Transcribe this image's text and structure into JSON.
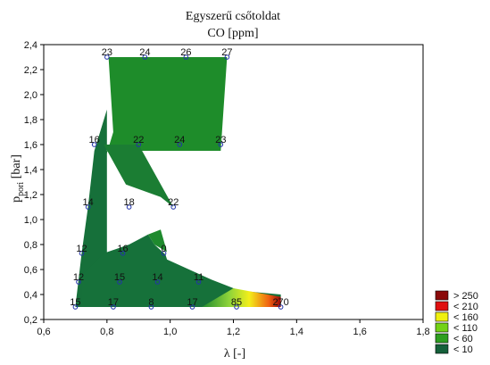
{
  "chart_data": {
    "type": "contour",
    "title": "Egyszerű csőtoldat",
    "subtitle": "CO [ppm]",
    "xlabel": "λ [-]",
    "ylabel_main": "p",
    "ylabel_sub": "pori",
    "ylabel_unit": "[bar]",
    "xlim": [
      0.6,
      1.8
    ],
    "ylim": [
      0.2,
      2.4
    ],
    "x_ticks": [
      "0,6",
      "0,8",
      "1,0",
      "1,2",
      "1,4",
      "1,6",
      "1,8"
    ],
    "y_ticks": [
      "0,2",
      "0,4",
      "0,6",
      "0,8",
      "1,0",
      "1,2",
      "1,4",
      "1,6",
      "1,8",
      "2,0",
      "2,2",
      "2,4"
    ],
    "grid": false,
    "legend_position": "bottom-right",
    "legend": [
      {
        "label": "> 250",
        "color": "#8b0a0a"
      },
      {
        "label": "< 210",
        "color": "#e01010"
      },
      {
        "label": "< 160",
        "color": "#f0f010"
      },
      {
        "label": "< 110",
        "color": "#73d216"
      },
      {
        "label": "< 60",
        "color": "#2e9e1f"
      },
      {
        "label": "< 10",
        "color": "#15603a"
      }
    ],
    "points": [
      {
        "x": 0.8,
        "y": 2.3,
        "label": "23"
      },
      {
        "x": 0.92,
        "y": 2.3,
        "label": "24"
      },
      {
        "x": 1.05,
        "y": 2.3,
        "label": "26"
      },
      {
        "x": 1.18,
        "y": 2.3,
        "label": "27"
      },
      {
        "x": 0.76,
        "y": 1.6,
        "label": "16"
      },
      {
        "x": 0.9,
        "y": 1.6,
        "label": "22"
      },
      {
        "x": 1.03,
        "y": 1.6,
        "label": "24"
      },
      {
        "x": 1.16,
        "y": 1.6,
        "label": "23"
      },
      {
        "x": 0.74,
        "y": 1.1,
        "label": "14"
      },
      {
        "x": 0.87,
        "y": 1.1,
        "label": "18"
      },
      {
        "x": 1.01,
        "y": 1.1,
        "label": "22"
      },
      {
        "x": 0.72,
        "y": 0.73,
        "label": "12"
      },
      {
        "x": 0.85,
        "y": 0.73,
        "label": "16"
      },
      {
        "x": 0.98,
        "y": 0.73,
        "label": "0"
      },
      {
        "x": 0.71,
        "y": 0.5,
        "label": "12"
      },
      {
        "x": 0.84,
        "y": 0.5,
        "label": "15"
      },
      {
        "x": 0.96,
        "y": 0.5,
        "label": "14"
      },
      {
        "x": 1.09,
        "y": 0.5,
        "label": "11"
      },
      {
        "x": 0.7,
        "y": 0.3,
        "label": "15"
      },
      {
        "x": 0.82,
        "y": 0.3,
        "label": "17"
      },
      {
        "x": 0.94,
        "y": 0.3,
        "label": "8"
      },
      {
        "x": 1.07,
        "y": 0.3,
        "label": "17"
      },
      {
        "x": 1.21,
        "y": 0.3,
        "label": "85"
      },
      {
        "x": 1.35,
        "y": 0.3,
        "label": "270"
      }
    ],
    "region_light": [
      [
        0.805,
        2.3
      ],
      [
        1.18,
        2.3
      ],
      [
        1.16,
        1.55
      ],
      [
        1.07,
        1.55
      ],
      [
        0.78,
        1.55
      ],
      [
        0.76,
        1.2
      ],
      [
        0.82,
        1.7
      ]
    ],
    "region_dark": [
      [
        0.7,
        0.3
      ],
      [
        0.8,
        0.3
      ],
      [
        0.8,
        1.88
      ],
      [
        0.76,
        1.55
      ],
      [
        0.74,
        1.1
      ],
      [
        0.72,
        0.73
      ]
    ],
    "region_mid": [
      [
        0.79,
        1.6
      ],
      [
        0.9,
        1.6
      ],
      [
        1.01,
        1.1
      ],
      [
        0.97,
        1.18
      ],
      [
        0.86,
        1.28
      ]
    ],
    "region_lower": [
      [
        0.72,
        0.3
      ],
      [
        1.35,
        0.3
      ],
      [
        1.35,
        0.4
      ],
      [
        1.22,
        0.43
      ],
      [
        1.13,
        0.52
      ],
      [
        0.99,
        0.68
      ],
      [
        0.985,
        0.72
      ],
      [
        0.95,
        0.8
      ],
      [
        0.93,
        0.88
      ],
      [
        0.87,
        0.8
      ],
      [
        0.79,
        0.73
      ],
      [
        0.72,
        0.55
      ]
    ],
    "hot_gradient": [
      [
        1.1,
        0.3
      ],
      [
        1.35,
        0.3
      ],
      [
        1.35,
        0.38
      ],
      [
        1.2,
        0.45
      ]
    ]
  }
}
